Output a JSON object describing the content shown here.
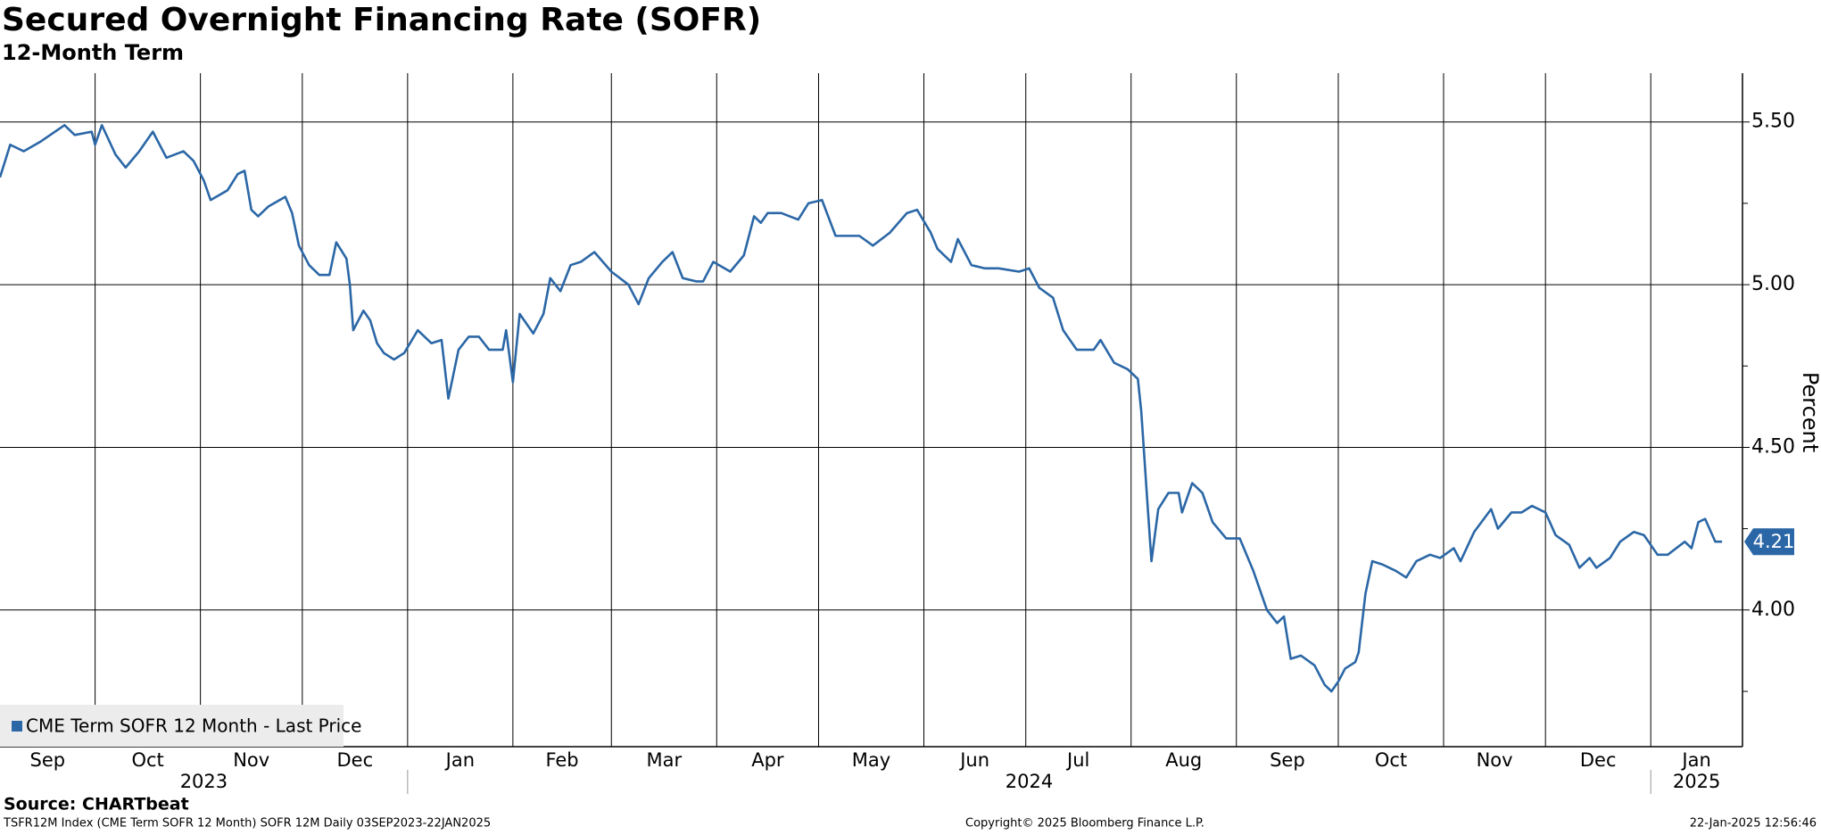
{
  "chart_data": {
    "type": "line",
    "title": "Secured Overnight Financing Rate (SOFR)",
    "subtitle": "12-Month Term",
    "y_label": "Percent",
    "grid": true,
    "legend": "lower left",
    "x": [
      "2023-09-03",
      "2023-09-06",
      "2023-09-10",
      "2023-09-15",
      "2023-09-22",
      "2023-09-25",
      "2023-09-30",
      "2023-10-01",
      "2023-10-03",
      "2023-10-07",
      "2023-10-10",
      "2023-10-14",
      "2023-10-18",
      "2023-10-22",
      "2023-10-27",
      "2023-10-30",
      "2023-11-02",
      "2023-11-04",
      "2023-11-09",
      "2023-11-12",
      "2023-11-14",
      "2023-11-16",
      "2023-11-18",
      "2023-11-21",
      "2023-11-26",
      "2023-11-28",
      "2023-11-30",
      "2023-12-03",
      "2023-12-06",
      "2023-12-09",
      "2023-12-11",
      "2023-12-14",
      "2023-12-15",
      "2023-12-16",
      "2023-12-19",
      "2023-12-21",
      "2023-12-23",
      "2023-12-25",
      "2023-12-28",
      "2023-12-31",
      "2024-01-04",
      "2024-01-08",
      "2024-01-11",
      "2024-01-13",
      "2024-01-16",
      "2024-01-19",
      "2024-01-22",
      "2024-01-25",
      "2024-01-29",
      "2024-01-30",
      "2024-02-01",
      "2024-02-03",
      "2024-02-07",
      "2024-02-10",
      "2024-02-12",
      "2024-02-15",
      "2024-02-18",
      "2024-02-21",
      "2024-02-25",
      "2024-03-01",
      "2024-03-06",
      "2024-03-09",
      "2024-03-12",
      "2024-03-16",
      "2024-03-19",
      "2024-03-22",
      "2024-03-26",
      "2024-03-28",
      "2024-03-31",
      "2024-04-05",
      "2024-04-09",
      "2024-04-12",
      "2024-04-14",
      "2024-04-16",
      "2024-04-20",
      "2024-04-25",
      "2024-04-28",
      "2024-05-02",
      "2024-05-06",
      "2024-05-13",
      "2024-05-17",
      "2024-05-22",
      "2024-05-27",
      "2024-05-30",
      "2024-06-03",
      "2024-06-05",
      "2024-06-09",
      "2024-06-11",
      "2024-06-15",
      "2024-06-19",
      "2024-06-23",
      "2024-06-29",
      "2024-07-02",
      "2024-07-05",
      "2024-07-09",
      "2024-07-12",
      "2024-07-16",
      "2024-07-21",
      "2024-07-23",
      "2024-07-27",
      "2024-07-31",
      "2024-08-03",
      "2024-08-04",
      "2024-08-06",
      "2024-08-07",
      "2024-08-09",
      "2024-08-12",
      "2024-08-15",
      "2024-08-16",
      "2024-08-19",
      "2024-08-22",
      "2024-08-25",
      "2024-08-29",
      "2024-09-02",
      "2024-09-06",
      "2024-09-10",
      "2024-09-13",
      "2024-09-15",
      "2024-09-17",
      "2024-09-20",
      "2024-09-24",
      "2024-09-27",
      "2024-09-29",
      "2024-10-01",
      "2024-10-03",
      "2024-10-06",
      "2024-10-07",
      "2024-10-09",
      "2024-10-11",
      "2024-10-14",
      "2024-10-18",
      "2024-10-21",
      "2024-10-24",
      "2024-10-28",
      "2024-10-31",
      "2024-11-04",
      "2024-11-06",
      "2024-11-10",
      "2024-11-15",
      "2024-11-17",
      "2024-11-21",
      "2024-11-24",
      "2024-11-27",
      "2024-12-01",
      "2024-12-04",
      "2024-12-08",
      "2024-12-11",
      "2024-12-14",
      "2024-12-16",
      "2024-12-20",
      "2024-12-23",
      "2024-12-27",
      "2024-12-30",
      "2025-01-03",
      "2025-01-06",
      "2025-01-11",
      "2025-01-13",
      "2025-01-15",
      "2025-01-17",
      "2025-01-20",
      "2025-01-22"
    ],
    "series": [
      {
        "name": "CME Term SOFR 12 Month - Last Price",
        "color": "#2b67a6",
        "values": [
          5.33,
          5.43,
          5.41,
          5.44,
          5.49,
          5.46,
          5.47,
          5.43,
          5.49,
          5.4,
          5.36,
          5.41,
          5.47,
          5.39,
          5.41,
          5.38,
          5.32,
          5.26,
          5.29,
          5.34,
          5.35,
          5.23,
          5.21,
          5.24,
          5.27,
          5.22,
          5.12,
          5.06,
          5.03,
          5.03,
          5.13,
          5.08,
          5.0,
          4.86,
          4.92,
          4.89,
          4.82,
          4.79,
          4.77,
          4.79,
          4.86,
          4.82,
          4.83,
          4.65,
          4.8,
          4.84,
          4.84,
          4.8,
          4.8,
          4.86,
          4.7,
          4.91,
          4.85,
          4.91,
          5.02,
          4.98,
          5.06,
          5.07,
          5.1,
          5.04,
          5.0,
          4.94,
          5.02,
          5.07,
          5.1,
          5.02,
          5.01,
          5.01,
          5.07,
          5.04,
          5.09,
          5.21,
          5.19,
          5.22,
          5.22,
          5.2,
          5.25,
          5.26,
          5.15,
          5.15,
          5.12,
          5.16,
          5.22,
          5.23,
          5.16,
          5.11,
          5.07,
          5.14,
          5.06,
          5.05,
          5.05,
          5.04,
          5.05,
          4.99,
          4.96,
          4.86,
          4.8,
          4.8,
          4.83,
          4.76,
          4.74,
          4.71,
          4.61,
          4.3,
          4.15,
          4.31,
          4.36,
          4.36,
          4.3,
          4.39,
          4.36,
          4.27,
          4.22,
          4.22,
          4.12,
          4.0,
          3.96,
          3.98,
          3.85,
          3.86,
          3.83,
          3.77,
          3.75,
          3.78,
          3.82,
          3.84,
          3.87,
          4.05,
          4.15,
          4.14,
          4.12,
          4.1,
          4.15,
          4.17,
          4.16,
          4.19,
          4.15,
          4.24,
          4.31,
          4.25,
          4.3,
          4.3,
          4.32,
          4.3,
          4.23,
          4.2,
          4.13,
          4.16,
          4.13,
          4.16,
          4.21,
          4.24,
          4.23,
          4.17,
          4.17,
          4.21,
          4.19,
          4.27,
          4.28,
          4.21,
          4.21
        ]
      }
    ],
    "xlim": [
      "2023-09-03",
      "2025-01-28"
    ],
    "xticks": [
      {
        "value": "2023-09-01",
        "label": "Sep"
      },
      {
        "value": "2023-10-01",
        "label": "Oct"
      },
      {
        "value": "2023-11-01",
        "label": "Nov"
      },
      {
        "value": "2023-12-01",
        "label": "Dec"
      },
      {
        "value": "2024-01-01",
        "label": "Jan"
      },
      {
        "value": "2024-02-01",
        "label": "Feb"
      },
      {
        "value": "2024-03-01",
        "label": "Mar"
      },
      {
        "value": "2024-04-01",
        "label": "Apr"
      },
      {
        "value": "2024-05-01",
        "label": "May"
      },
      {
        "value": "2024-06-01",
        "label": "Jun"
      },
      {
        "value": "2024-07-01",
        "label": "Jul"
      },
      {
        "value": "2024-08-01",
        "label": "Aug"
      },
      {
        "value": "2024-09-01",
        "label": "Sep"
      },
      {
        "value": "2024-10-01",
        "label": "Oct"
      },
      {
        "value": "2024-11-01",
        "label": "Nov"
      },
      {
        "value": "2024-12-01",
        "label": "Dec"
      },
      {
        "value": "2025-01-01",
        "label": "Jan"
      }
    ],
    "year_ticks": [
      {
        "value": "2023-09-01",
        "label": "2023"
      },
      {
        "value": "2024-01-01",
        "label": "2024"
      },
      {
        "value": "2025-01-01",
        "label": "2025"
      }
    ],
    "ylim": [
      3.58,
      5.65
    ],
    "yticks": [
      {
        "value": 4.0,
        "label": "4.00"
      },
      {
        "value": 4.5,
        "label": "4.50"
      },
      {
        "value": 5.0,
        "label": "5.00"
      },
      {
        "value": 5.5,
        "label": "5.50"
      }
    ],
    "y_minor_ticks": [
      3.75,
      4.25,
      4.75,
      5.25
    ]
  },
  "footer": {
    "source": "Source: CHARTbeat",
    "description": "TSFR12M Index (CME Term SOFR 12 Month) SOFR 12M  Daily 03SEP2023-22JAN2025",
    "copyright": "Copyright© 2025 Bloomberg Finance L.P.",
    "timestamp": "22-Jan-2025 12:56:46"
  }
}
